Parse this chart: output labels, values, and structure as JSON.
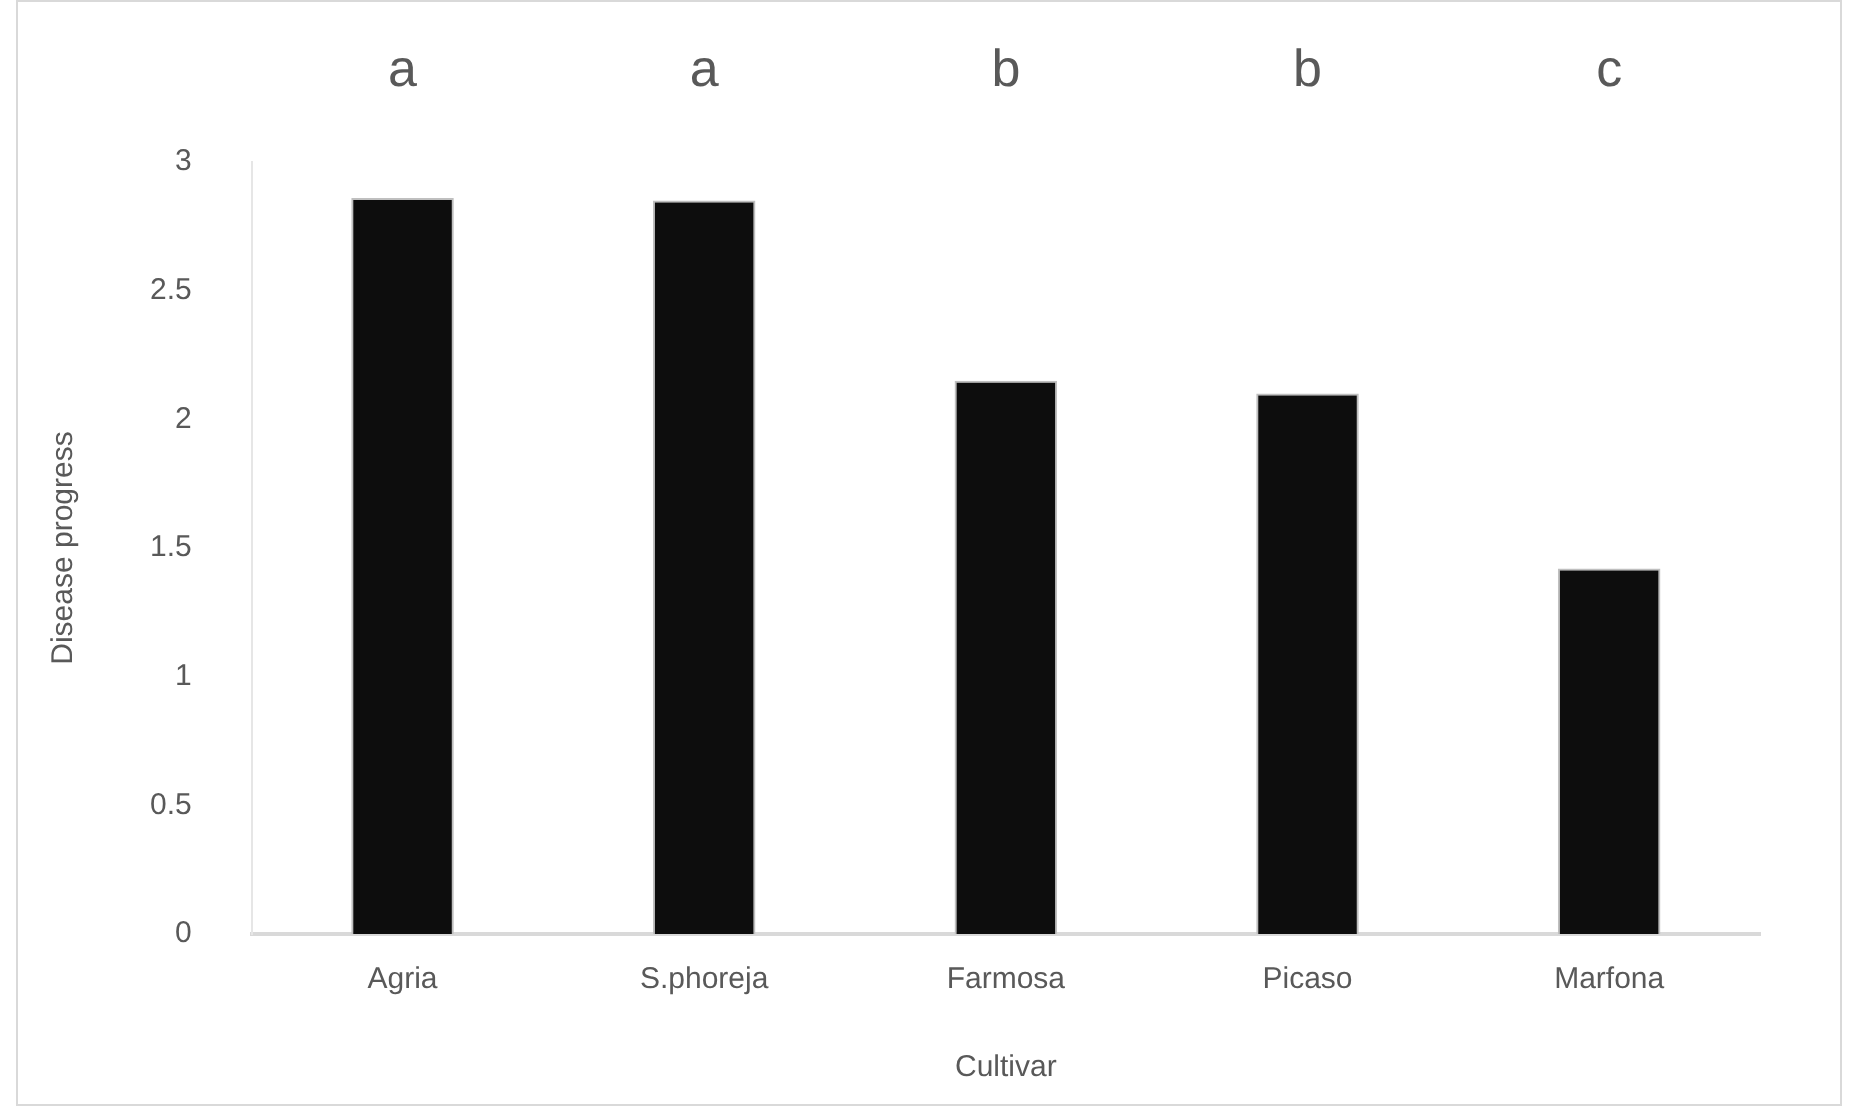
{
  "chart_data": {
    "type": "bar",
    "xlabel": "Cultivar",
    "ylabel": "Disease progress",
    "categories": [
      "Agria",
      "S.phoreja",
      "Farmosa",
      "Picaso",
      "Marfona"
    ],
    "values": [
      2.86,
      2.85,
      2.15,
      2.1,
      1.42
    ],
    "color": "#0d0d0d",
    "ylim": [
      0,
      3
    ],
    "yticks": [
      0,
      0.5,
      1,
      1.5,
      2,
      2.5,
      3
    ],
    "grid": false,
    "annotations": [
      "a",
      "a",
      "b",
      "b",
      "c"
    ]
  }
}
